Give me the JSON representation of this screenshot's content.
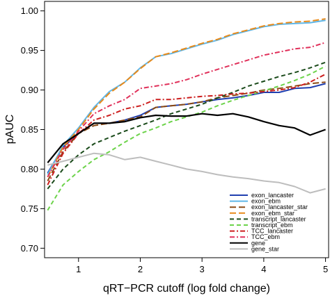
{
  "chart_data": {
    "type": "line",
    "title": "",
    "xlabel": "qRT−PCR cutoff (log fold change)",
    "ylabel": "pAUC",
    "xlim": [
      0.5,
      5.0
    ],
    "ylim": [
      0.7,
      1.0
    ],
    "xticks": [
      1,
      2,
      3,
      4,
      5
    ],
    "yticks": [
      0.7,
      0.75,
      0.8,
      0.85,
      0.9,
      0.95,
      1.0
    ],
    "xtick_labels": [
      "1",
      "2",
      "3",
      "4",
      "5"
    ],
    "ytick_labels": [
      "0.70",
      "0.75",
      "0.80",
      "0.85",
      "0.90",
      "0.95",
      "1.00"
    ],
    "grid": false,
    "legend_position": "bottom-right",
    "x": [
      0.5,
      0.75,
      1.0,
      1.25,
      1.5,
      1.75,
      2.0,
      2.25,
      2.5,
      2.75,
      3.0,
      3.25,
      3.5,
      3.75,
      4.0,
      4.25,
      4.5,
      4.75,
      5.0
    ],
    "series": [
      {
        "name": "exon_lancaster",
        "color": "#1f3fb0",
        "dash": "solid",
        "values": [
          0.795,
          0.828,
          0.845,
          0.858,
          0.858,
          0.862,
          0.868,
          0.878,
          0.88,
          0.882,
          0.885,
          0.888,
          0.89,
          0.893,
          0.897,
          0.897,
          0.902,
          0.903,
          0.908
        ]
      },
      {
        "name": "exon_ebm",
        "color": "#5fb6e8",
        "dash": "solid",
        "values": [
          0.793,
          0.83,
          0.852,
          0.878,
          0.898,
          0.91,
          0.928,
          0.942,
          0.946,
          0.952,
          0.958,
          0.963,
          0.97,
          0.975,
          0.98,
          0.983,
          0.984,
          0.985,
          0.988
        ]
      },
      {
        "name": "exon_lancaster_star",
        "color": "#8b4a14",
        "dash": "long",
        "values": [
          0.785,
          0.822,
          0.845,
          0.855,
          0.858,
          0.862,
          0.866,
          0.878,
          0.88,
          0.882,
          0.885,
          0.89,
          0.893,
          0.896,
          0.9,
          0.902,
          0.905,
          0.908,
          0.91
        ]
      },
      {
        "name": "exon_ebm_star",
        "color": "#e88a1a",
        "dash": "long",
        "values": [
          0.79,
          0.828,
          0.85,
          0.876,
          0.896,
          0.91,
          0.927,
          0.942,
          0.947,
          0.953,
          0.959,
          0.964,
          0.971,
          0.976,
          0.981,
          0.984,
          0.986,
          0.987,
          0.99
        ]
      },
      {
        "name": "transcript_lancaster",
        "color": "#1a4a1a",
        "dash": "medium",
        "values": [
          0.775,
          0.8,
          0.818,
          0.832,
          0.84,
          0.848,
          0.855,
          0.862,
          0.87,
          0.876,
          0.882,
          0.89,
          0.897,
          0.905,
          0.911,
          0.917,
          0.922,
          0.928,
          0.935
        ]
      },
      {
        "name": "transcript_ebm",
        "color": "#6cd34a",
        "dash": "medium",
        "values": [
          0.748,
          0.78,
          0.797,
          0.812,
          0.822,
          0.834,
          0.845,
          0.852,
          0.86,
          0.866,
          0.872,
          0.88,
          0.887,
          0.893,
          0.899,
          0.905,
          0.912,
          0.92,
          0.93
        ]
      },
      {
        "name": "TCC_lancaster",
        "color": "#cc1d1d",
        "dash": "dashdot",
        "values": [
          0.78,
          0.82,
          0.845,
          0.862,
          0.868,
          0.876,
          0.88,
          0.888,
          0.888,
          0.89,
          0.892,
          0.893,
          0.895,
          0.896,
          0.898,
          0.9,
          0.903,
          0.91,
          0.92
        ]
      },
      {
        "name": "TCC_ebm",
        "color": "#e0305a",
        "dash": "dashdot",
        "values": [
          0.79,
          0.825,
          0.848,
          0.87,
          0.88,
          0.888,
          0.902,
          0.905,
          0.908,
          0.913,
          0.92,
          0.926,
          0.932,
          0.938,
          0.944,
          0.948,
          0.952,
          0.954,
          0.96
        ]
      },
      {
        "name": "gene",
        "color": "#000000",
        "dash": "solid",
        "values": [
          0.808,
          0.832,
          0.845,
          0.858,
          0.858,
          0.86,
          0.865,
          0.868,
          0.867,
          0.867,
          0.87,
          0.868,
          0.87,
          0.866,
          0.86,
          0.855,
          0.852,
          0.843,
          0.85
        ]
      },
      {
        "name": "gene_star",
        "color": "#bdbdbd",
        "dash": "solid",
        "values": [
          0.805,
          0.81,
          0.815,
          0.82,
          0.818,
          0.812,
          0.815,
          0.81,
          0.805,
          0.8,
          0.797,
          0.793,
          0.79,
          0.788,
          0.785,
          0.783,
          0.778,
          0.77,
          0.775
        ]
      }
    ]
  }
}
